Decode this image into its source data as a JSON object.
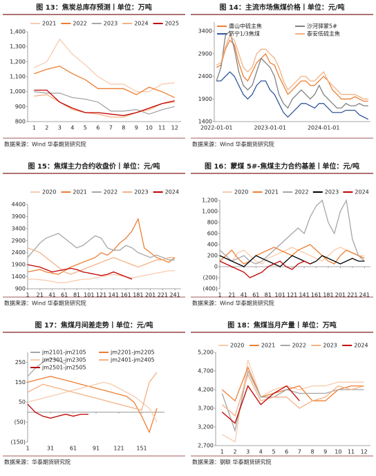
{
  "chart_data": [
    {
      "type": "line",
      "title": "图 13：焦炭总库存预测丨单位：万吨",
      "source": "数据来源：Wind 华泰期货研究院",
      "categories": [
        "1",
        "2",
        "3",
        "4",
        "5",
        "6",
        "7",
        "8",
        "9",
        "10",
        "11",
        "12"
      ],
      "ylim": [
        800,
        1400
      ],
      "yticks": [
        800,
        900,
        {
          "value": 1000,
          "label": "1,000"
        },
        {
          "value": 1100,
          "label": "1,100"
        },
        {
          "value": 1200,
          "label": "1,200"
        },
        {
          "value": 1300,
          "label": "1,300"
        },
        {
          "value": 1400,
          "label": "1,400"
        }
      ],
      "series": [
        {
          "name": "2021",
          "color": "#f8cbad",
          "values": [
            1160,
            1200,
            1350,
            1250,
            1180,
            1100,
            1050,
            1050,
            1000,
            1000,
            1050,
            1060
          ]
        },
        {
          "name": "2022",
          "color": "#ed7d31",
          "values": [
            1120,
            1150,
            1170,
            1120,
            1080,
            1020,
            1020,
            1020,
            980,
            1030,
            1000,
            960
          ]
        },
        {
          "name": "2023",
          "color": "#a5a5a5",
          "values": [
            1000,
            990,
            990,
            960,
            950,
            930,
            870,
            870,
            880,
            850,
            880,
            900
          ]
        },
        {
          "name": "2024",
          "color": "#f4b183",
          "values": [
            970,
            980,
            930,
            880,
            860,
            850,
            830,
            830,
            860,
            880,
            920,
            930
          ]
        },
        {
          "name": "2025",
          "color": "#c00000",
          "values": [
            1010,
            1010,
            930,
            890,
            860,
            860,
            850,
            840,
            860,
            890,
            920,
            940
          ]
        }
      ]
    },
    {
      "type": "line",
      "title": "图 14：主流市场焦煤价格丨单位：元/吨",
      "source": "数据来源：Wind 华泰期货研究院",
      "categories": [
        "2022-01-01",
        null,
        null,
        null,
        null,
        null,
        null,
        null,
        null,
        null,
        null,
        null,
        "2023-01-01",
        null,
        null,
        null,
        null,
        null,
        null,
        null,
        null,
        null,
        null,
        null,
        "2024-01-01",
        null,
        null,
        null,
        null,
        null,
        null,
        null,
        null,
        null,
        null
      ],
      "ylim": [
        1400,
        3600
      ],
      "yticks": [
        1400,
        1900,
        2400,
        2900,
        3400
      ],
      "series": [
        {
          "name": "唐山中硫主焦",
          "color": "#ed7d31",
          "values": [
            2600,
            2650,
            3000,
            3200,
            3100,
            2700,
            2400,
            2300,
            2500,
            2700,
            2800,
            2900,
            2700,
            2650,
            2400,
            2200,
            2000,
            2100,
            2200,
            2300,
            2300,
            2200,
            2200,
            2300,
            2400,
            2300,
            2100,
            2000,
            1900,
            1900,
            1900,
            1950,
            1900,
            1850,
            1850
          ]
        },
        {
          "name": "沙河驿蒙5#",
          "color": "#7f7f7f",
          "values": [
            2300,
            2600,
            3300,
            3400,
            3000,
            2500,
            2200,
            2100,
            2200,
            2500,
            2800,
            2700,
            2600,
            2400,
            2000,
            1800,
            1700,
            1900,
            2000,
            2100,
            2000,
            1900,
            2000,
            2200,
            2000,
            1900,
            1800,
            1700,
            1700,
            1800,
            1750,
            1750,
            1800,
            1750,
            1750
          ]
        },
        {
          "name": "济宁1/3焦煤",
          "color": "#2f5597",
          "values": [
            2300,
            2300,
            2400,
            2500,
            2400,
            2200,
            2000,
            1900,
            2000,
            2200,
            2300,
            2300,
            2100,
            2000,
            1800,
            1600,
            1500,
            1600,
            1700,
            1800,
            1800,
            1750,
            1700,
            1800,
            1800,
            1700,
            1600,
            1600,
            1600,
            1650,
            1650,
            1650,
            1550,
            1500,
            1450
          ]
        },
        {
          "name": "泰安低硫主焦",
          "color": "#f4b183",
          "values": [
            2650,
            2700,
            3050,
            3300,
            3200,
            2900,
            2600,
            2500,
            2600,
            2900,
            3000,
            3000,
            2900,
            2800,
            2600,
            2300,
            2100,
            2200,
            2300,
            2400,
            2400,
            2300,
            2300,
            2400,
            2500,
            2300,
            2200,
            2100,
            2000,
            2000,
            2000,
            2000,
            1950,
            1900,
            1900
          ]
        }
      ]
    },
    {
      "type": "line",
      "title": "图 15：焦煤主力合约收盘价丨单位：元/吨",
      "source": "数据来源：Wind 华泰期货研究院",
      "x": [
        1,
        11,
        21,
        31,
        41,
        51,
        61,
        71,
        81,
        91,
        101,
        111,
        121,
        131,
        141,
        151,
        161,
        171,
        181,
        191,
        201,
        211,
        221,
        231,
        241
      ],
      "xlim": [
        1,
        251
      ],
      "xticks": [
        1,
        21,
        41,
        61,
        81,
        101,
        121,
        141,
        161,
        181,
        201,
        221,
        241
      ],
      "ylim": [
        900,
        4400
      ],
      "yticks": [
        900,
        1400,
        1900,
        2400,
        2900,
        3400,
        3900,
        4400
      ],
      "series": [
        {
          "name": "2020",
          "color": "#f8cbad",
          "values": [
            1300,
            1300,
            1280,
            1250,
            1200,
            1150,
            1150,
            1200,
            1250,
            1300,
            1300,
            1350,
            1400,
            1450,
            1500,
            1450,
            1400,
            1350,
            1400,
            1450,
            1500,
            1550,
            1600,
            1650,
            1650
          ]
        },
        {
          "name": "2021",
          "color": "#ed7d31",
          "values": [
            1600,
            1650,
            1700,
            1600,
            1550,
            1500,
            1650,
            1800,
            1900,
            2000,
            2100,
            2200,
            2400,
            2300,
            2500,
            2800,
            3000,
            3300,
            3800,
            2600,
            2400,
            2200,
            2100,
            2000,
            2200
          ]
        },
        {
          "name": "2022",
          "color": "#a5a5a5",
          "values": [
            2200,
            2500,
            2800,
            3000,
            3100,
            3200,
            3000,
            2800,
            2600,
            2700,
            2900,
            3100,
            3000,
            2600,
            2500,
            2500,
            2700,
            2600,
            2400,
            2300,
            2200,
            2300,
            2200,
            2100,
            2100
          ]
        },
        {
          "name": "2023",
          "color": "#f4b183",
          "values": [
            2600,
            2500,
            2400,
            2200,
            2000,
            1800,
            1600,
            1500,
            1600,
            1700,
            1800,
            1900,
            2000,
            2100,
            2200,
            2100,
            2000,
            1900,
            1800,
            1900,
            2000,
            2100,
            2100,
            2200,
            2200
          ]
        },
        {
          "name": "2024",
          "color": "#c00000",
          "values": [
            1900,
            1850,
            1800,
            1700,
            1600,
            1650,
            1700,
            1750,
            1700,
            1600,
            1550,
            1500,
            1450,
            1500,
            1600,
            1500,
            1400,
            1300,
            null,
            null,
            null,
            null,
            null,
            null,
            null
          ]
        }
      ]
    },
    {
      "type": "line",
      "title": "图 16：蒙煤 5#-焦煤主力合约基差丨单位：元/吨",
      "source": "数据来源：Wind 华泰期货研究院",
      "x": [
        1,
        11,
        21,
        31,
        41,
        51,
        61,
        71,
        81,
        91,
        101,
        111,
        121,
        131,
        141,
        151,
        161,
        171,
        181,
        191,
        201,
        211,
        221,
        231,
        241
      ],
      "xlim": [
        1,
        251
      ],
      "xticks": [
        1,
        21,
        41,
        61,
        81,
        101,
        121,
        141,
        161,
        181,
        201,
        221,
        241
      ],
      "ylim": [
        -400,
        1200
      ],
      "negative_tick_color": "#c00000",
      "yticks": [
        {
          "value": -400,
          "label": "(400)"
        },
        {
          "value": -200,
          "label": "(200)"
        },
        0,
        200,
        400,
        600,
        800,
        {
          "value": 1000,
          "label": "1,000"
        },
        {
          "value": 1200,
          "label": "1,200"
        }
      ],
      "series": [
        {
          "name": "2020",
          "color": "#f8cbad",
          "values": [
            200,
            150,
            100,
            250,
            300,
            200,
            100,
            50,
            150,
            200,
            250,
            300,
            350,
            300,
            250,
            200,
            150,
            100,
            200,
            300,
            350,
            300,
            250,
            200,
            200
          ]
        },
        {
          "name": "2021",
          "color": "#ed7d31",
          "values": [
            100,
            200,
            300,
            150,
            50,
            100,
            200,
            250,
            300,
            350,
            300,
            250,
            200,
            300,
            350,
            400,
            300,
            200,
            100,
            50,
            200,
            300,
            250,
            200,
            150
          ]
        },
        {
          "name": "2022",
          "color": "#a5a5a5",
          "values": [
            300,
            200,
            100,
            150,
            200,
            100,
            50,
            100,
            200,
            300,
            400,
            500,
            600,
            700,
            600,
            900,
            1100,
            1200,
            800,
            600,
            1000,
            1200,
            500,
            200,
            100
          ]
        },
        {
          "name": "2023",
          "color": "#000000",
          "values": [
            200,
            150,
            100,
            50,
            0,
            100,
            200,
            150,
            100,
            50,
            0,
            100,
            200,
            150,
            100,
            50,
            100,
            200,
            150,
            100,
            50,
            100,
            150,
            100,
            100
          ]
        },
        {
          "name": "2024",
          "color": "#c00000",
          "values": [
            100,
            50,
            0,
            -50,
            -100,
            -200,
            -150,
            -100,
            0,
            50,
            100,
            0,
            -50,
            50,
            100,
            50,
            null,
            null,
            null,
            null,
            null,
            null,
            null,
            null,
            null
          ]
        }
      ]
    },
    {
      "type": "line",
      "title": "图 17：焦煤月间差走势丨单位：元/吨",
      "source": "数据来源：华泰期货研究院",
      "x": [
        1,
        11,
        21,
        31,
        41,
        51,
        61,
        71,
        81,
        91,
        101,
        111,
        121,
        131,
        141,
        151,
        161,
        171
      ],
      "xlim": [
        1,
        181
      ],
      "xticks": [
        1,
        31,
        61,
        91,
        121,
        151
      ],
      "ylim": [
        -150,
        300
      ],
      "negative_tick_color": "#c00000",
      "yticks": [
        {
          "value": -150,
          "label": "(150)"
        },
        {
          "value": -50,
          "label": "(50)"
        },
        50,
        150,
        250
      ],
      "series": [
        {
          "name": "jm2101-jm2105",
          "color": "#a5a5a5",
          "values": [
            180,
            220,
            250,
            270,
            260,
            240,
            null,
            null,
            null,
            null,
            null,
            null,
            null,
            null,
            null,
            null,
            null,
            null
          ]
        },
        {
          "name": "jm2201-jm2205",
          "color": "#ed7d31",
          "values": [
            150,
            160,
            170,
            180,
            170,
            160,
            150,
            140,
            130,
            120,
            110,
            100,
            90,
            80,
            50,
            -20,
            -100,
            20
          ]
        },
        {
          "name": "jm2301-jm2305",
          "color": "#f8cbad",
          "values": [
            50,
            60,
            70,
            80,
            90,
            100,
            110,
            120,
            130,
            140,
            150,
            140,
            120,
            100,
            80,
            50,
            20,
            -50
          ]
        },
        {
          "name": "jm2401-jm2405",
          "color": "#f4b183",
          "values": [
            100,
            120,
            140,
            130,
            120,
            110,
            100,
            90,
            80,
            70,
            60,
            50,
            40,
            30,
            20,
            10,
            150,
            200
          ]
        },
        {
          "name": "jm2501-jm2505",
          "color": "#c00000",
          "values": [
            40,
            0,
            -20,
            -30,
            -20,
            -10,
            -20,
            -10,
            -10,
            null,
            null,
            null,
            null,
            null,
            null,
            null,
            null,
            null
          ]
        }
      ]
    },
    {
      "type": "line",
      "title": "图 18：焦煤当月产量丨单位：万吨",
      "source": "数据来源：钢联 华泰期货研究院",
      "categories": [
        "1",
        "2",
        "3",
        "4",
        "5",
        "6",
        "7",
        "8",
        "9",
        "10",
        "11",
        "12"
      ],
      "ylim": [
        2700,
        5200
      ],
      "yticks": [
        {
          "value": 2700,
          "label": "2,700"
        },
        {
          "value": 3200,
          "label": "3,200"
        },
        {
          "value": 3700,
          "label": "3,700"
        },
        {
          "value": 4200,
          "label": "4,200"
        },
        {
          "value": 4700,
          "label": "4,700"
        },
        {
          "value": 5200,
          "label": "5,200"
        }
      ],
      "series": [
        {
          "name": "2020",
          "color": "#f8cbad",
          "values": [
            3000,
            2800,
            5000,
            4000,
            4200,
            4300,
            4200,
            4300,
            4300,
            4400,
            4400,
            4400
          ]
        },
        {
          "name": "2021",
          "color": "#ed7d31",
          "values": [
            4200,
            3900,
            4800,
            4000,
            4100,
            4200,
            4300,
            3900,
            3900,
            4200,
            4300,
            4300
          ]
        },
        {
          "name": "2022",
          "color": "#a5a5a5",
          "values": [
            4100,
            3100,
            4700,
            4000,
            4000,
            4200,
            4100,
            4100,
            4100,
            4200,
            4200,
            4200
          ]
        },
        {
          "name": "2023",
          "color": "#f4b183",
          "values": [
            3800,
            3500,
            4600,
            3900,
            4000,
            4000,
            3700,
            3900,
            4000,
            4300,
            4200,
            4300
          ]
        },
        {
          "name": "2024",
          "color": "#c00000",
          "values": [
            3600,
            3300,
            4300,
            3800,
            4100,
            4300,
            3900,
            null,
            null,
            null,
            null,
            null
          ]
        }
      ]
    }
  ]
}
